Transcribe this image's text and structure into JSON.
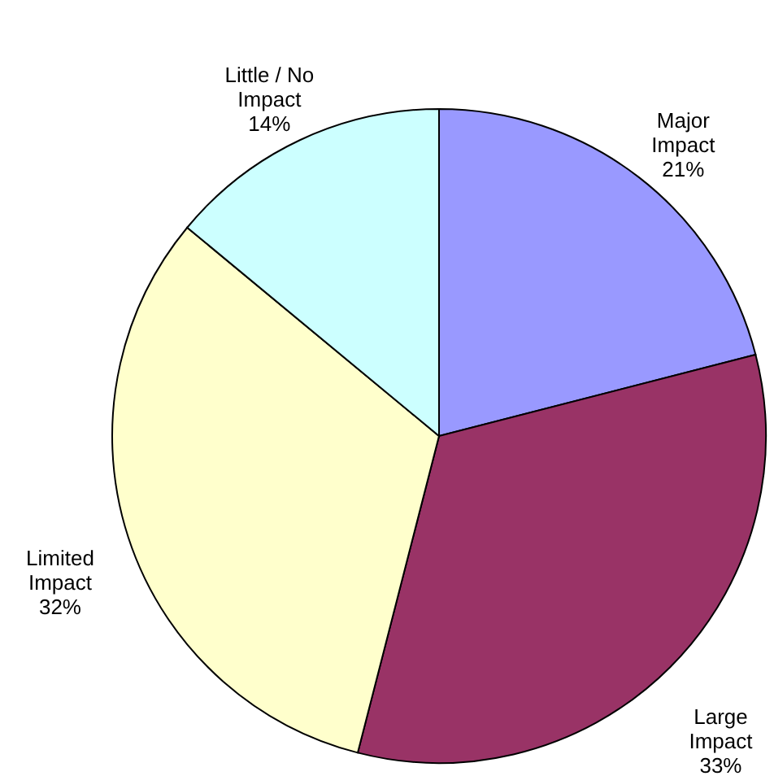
{
  "chart_data": {
    "type": "pie",
    "categories": [
      "Major\nImpact",
      "Large\nImpact",
      "Limited\nImpact",
      "Little / No\nImpact"
    ],
    "values": [
      21,
      33,
      32,
      14
    ],
    "colors": [
      "#9999ff",
      "#993366",
      "#ffffcc",
      "#ccffff"
    ],
    "value_labels": [
      "21%",
      "33%",
      "32%",
      "14%"
    ]
  }
}
